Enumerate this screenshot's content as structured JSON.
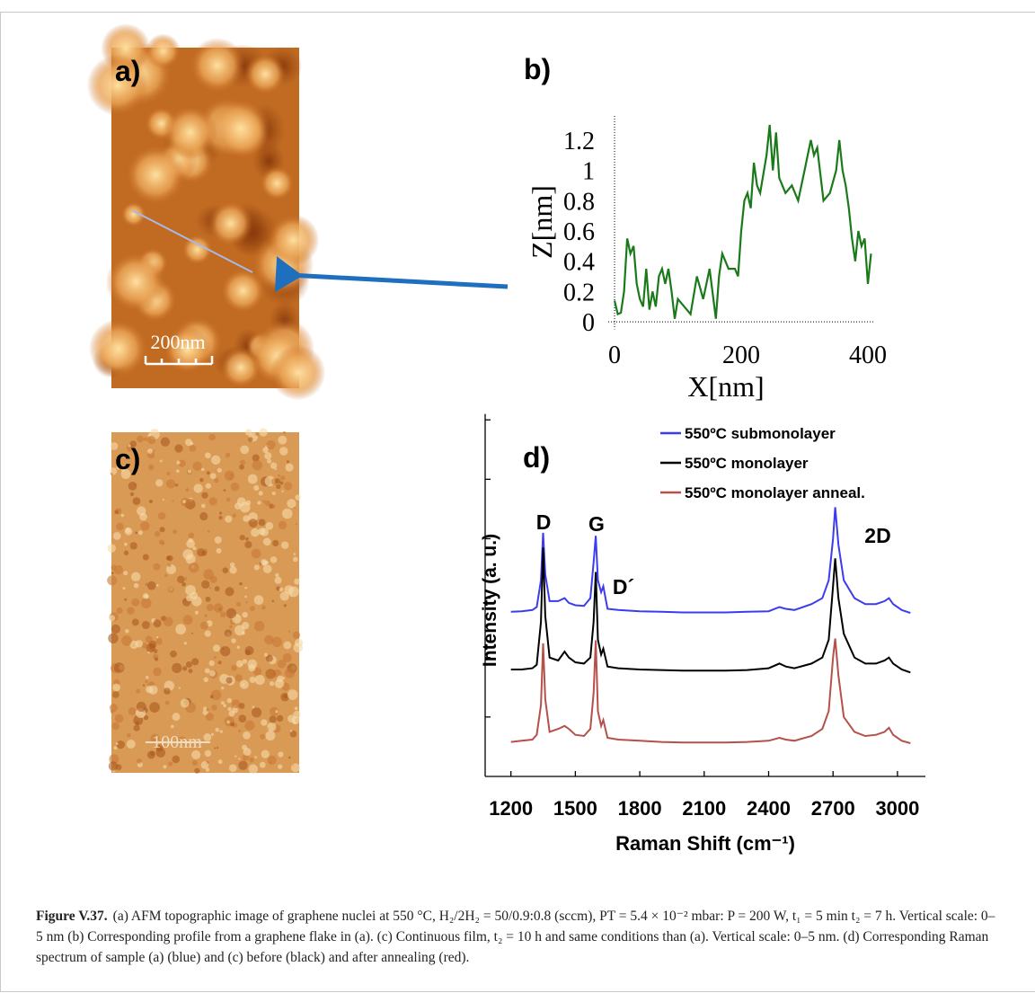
{
  "panels": {
    "a": "a)",
    "c": "c)",
    "scale_a": "200nm",
    "scale_c": "100nm"
  },
  "chart_data": [
    {
      "type": "line",
      "panel_label": "b)",
      "xlabel": "X[nm]",
      "ylabel": "Z[nm]",
      "xlim": [
        -10,
        410
      ],
      "ylim": [
        -0.05,
        1.3
      ],
      "xticks": [
        0,
        200,
        400
      ],
      "yticks": [
        0,
        0.2,
        0.4,
        0.6,
        0.8,
        1,
        1.2
      ],
      "zero_lines": true,
      "series": [
        {
          "color": "#1a7a1a",
          "x": [
            0,
            5,
            10,
            15,
            20,
            25,
            30,
            35,
            40,
            45,
            50,
            55,
            60,
            65,
            70,
            75,
            80,
            85,
            90,
            95,
            100,
            110,
            120,
            130,
            140,
            150,
            160,
            165,
            170,
            180,
            190,
            195,
            200,
            205,
            210,
            215,
            220,
            225,
            230,
            240,
            245,
            250,
            255,
            260,
            270,
            280,
            290,
            300,
            310,
            315,
            320,
            330,
            340,
            350,
            355,
            360,
            365,
            370,
            375,
            380,
            385,
            390,
            395,
            400,
            405
          ],
          "values": [
            0.14,
            0.05,
            0.06,
            0.2,
            0.55,
            0.45,
            0.5,
            0.25,
            0.15,
            0.1,
            0.35,
            0.08,
            0.2,
            0.1,
            0.3,
            0.35,
            0.25,
            0.35,
            0.2,
            0.02,
            0.15,
            0.1,
            0.05,
            0.3,
            0.15,
            0.35,
            0.02,
            0.3,
            0.45,
            0.35,
            0.35,
            0.3,
            0.6,
            0.8,
            0.85,
            0.75,
            1.05,
            0.9,
            0.85,
            1.1,
            1.3,
            1.0,
            1.25,
            0.95,
            0.85,
            0.9,
            0.8,
            1.0,
            1.2,
            1.1,
            1.15,
            0.8,
            0.85,
            1.0,
            1.2,
            1.0,
            0.9,
            0.75,
            0.55,
            0.4,
            0.6,
            0.5,
            0.55,
            0.25,
            0.45
          ]
        }
      ]
    },
    {
      "type": "line",
      "panel_label": "d)",
      "xlabel": "Raman Shift (cm⁻¹)",
      "ylabel": "Intensity (a. u.)",
      "xlim": [
        1080,
        3130
      ],
      "ylim": [
        0,
        6.1
      ],
      "xticks": [
        1200,
        1500,
        1800,
        2100,
        2400,
        2700,
        3000
      ],
      "yticks": [
        1,
        2,
        3,
        4,
        5,
        6
      ],
      "annotations": [
        "D",
        "G",
        "D´",
        "2D"
      ],
      "x": [
        1200,
        1250,
        1300,
        1320,
        1340,
        1350,
        1360,
        1380,
        1420,
        1450,
        1470,
        1500,
        1540,
        1570,
        1585,
        1595,
        1605,
        1620,
        1630,
        1650,
        1700,
        1800,
        1900,
        2000,
        2100,
        2200,
        2300,
        2400,
        2450,
        2480,
        2520,
        2600,
        2650,
        2680,
        2700,
        2710,
        2725,
        2750,
        2800,
        2850,
        2900,
        2940,
        2960,
        2980,
        3020,
        3060
      ],
      "series": [
        {
          "name": "550ºC submonolayer",
          "color": "#3b3bef",
          "values": [
            2.77,
            2.78,
            2.8,
            2.85,
            3.3,
            4.1,
            3.4,
            2.95,
            2.95,
            3.0,
            2.92,
            2.88,
            2.87,
            3.0,
            3.6,
            4.05,
            3.3,
            3.1,
            3.2,
            2.82,
            2.8,
            2.78,
            2.77,
            2.76,
            2.76,
            2.76,
            2.77,
            2.78,
            2.85,
            2.82,
            2.8,
            2.9,
            3.0,
            3.3,
            4.0,
            4.53,
            3.9,
            3.3,
            3.0,
            2.9,
            2.9,
            2.95,
            3.0,
            2.9,
            2.8,
            2.75
          ]
        },
        {
          "name": "550ºC monolayer",
          "color": "#000000",
          "values": [
            1.8,
            1.8,
            1.82,
            1.88,
            2.6,
            3.85,
            2.7,
            2.0,
            1.95,
            2.1,
            2.0,
            1.92,
            1.9,
            2.0,
            2.6,
            3.44,
            2.3,
            2.05,
            2.15,
            1.85,
            1.82,
            1.8,
            1.79,
            1.78,
            1.78,
            1.78,
            1.79,
            1.82,
            1.9,
            1.85,
            1.82,
            1.9,
            2.0,
            2.3,
            3.2,
            3.67,
            3.0,
            2.4,
            2.0,
            1.9,
            1.9,
            1.95,
            2.0,
            1.9,
            1.8,
            1.75
          ]
        },
        {
          "name": "550ºC monolayer anneal.",
          "color": "#b5504a",
          "values": [
            0.58,
            0.6,
            0.62,
            0.7,
            1.2,
            2.24,
            1.3,
            0.75,
            0.8,
            0.85,
            0.8,
            0.7,
            0.68,
            0.8,
            1.4,
            2.29,
            1.1,
            0.85,
            0.95,
            0.65,
            0.62,
            0.6,
            0.58,
            0.57,
            0.57,
            0.57,
            0.58,
            0.6,
            0.65,
            0.62,
            0.6,
            0.68,
            0.8,
            1.1,
            2.0,
            2.32,
            1.7,
            1.0,
            0.75,
            0.68,
            0.7,
            0.75,
            0.82,
            0.7,
            0.6,
            0.56
          ]
        }
      ]
    }
  ],
  "caption": {
    "label": "Figure V.37.",
    "text": "(a) AFM topographic image of graphene nuclei at 550 °C, H₂/2H₂ = 50/0.9:0.8 (sccm), PT = 5.4 × 10⁻² mbar: P = 200 W, t₁ = 5 min t₂ = 7 h. Vertical scale: 0–5 nm (b) Corresponding profile from a graphene flake in (a). (c) Continuous film, t₂ = 10 h and same conditions than (a). Vertical scale: 0–5 nm. (d) Corresponding Raman spectrum of sample (a) (blue) and (c) before (black) and after annealing (red)."
  }
}
